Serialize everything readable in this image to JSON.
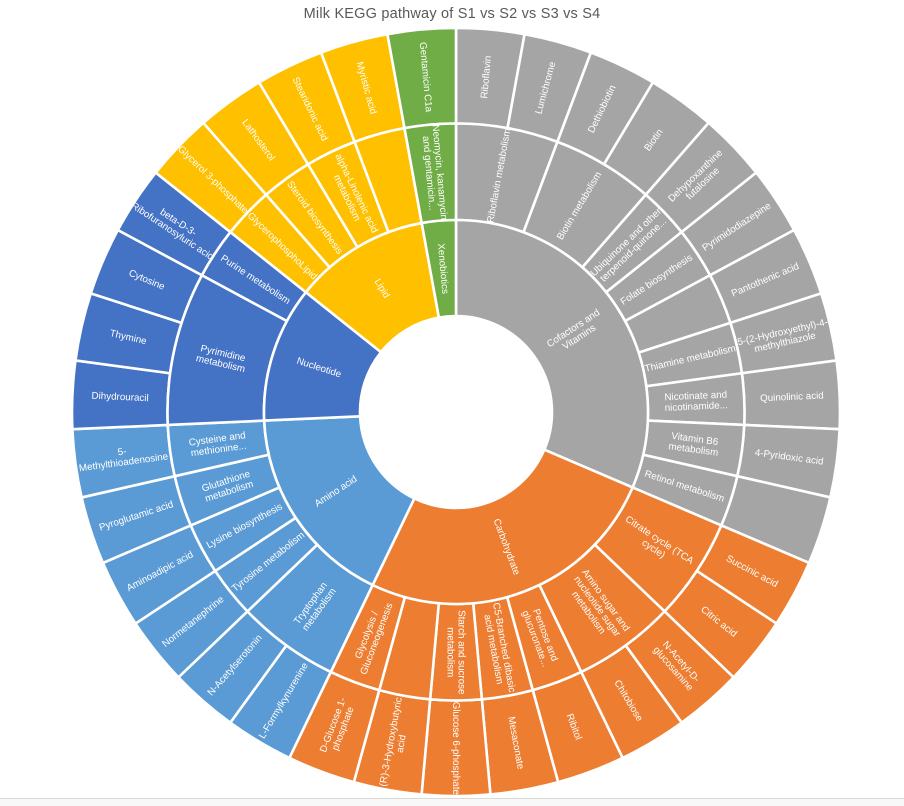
{
  "chart_data": {
    "type": "sunburst",
    "title": "Milk KEGG pathway of S1 vs S2 vs S3 vs S4",
    "rings": [
      "category",
      "pathway",
      "compound"
    ],
    "start_angle_deg": 0,
    "direction": "clockwise",
    "equal_leaf_angles": true,
    "legend": "none",
    "label_color": "#ffffff",
    "title_color": "#595959",
    "categories": [
      {
        "label": "Cofactors and\nVitamins",
        "color": "#A5A5A5",
        "pathways": [
          {
            "label": "Riboflavin metabolism",
            "compounds": [
              "Riboflavin",
              "Lumichrome"
            ]
          },
          {
            "label": "Biotin metabolism",
            "compounds": [
              "Dethiobiotin",
              "Biotin"
            ]
          },
          {
            "label": "Ubiquinone and other\nterpenoid-quinone...",
            "compounds": [
              "Dehypoxanthine\nfutalosine"
            ]
          },
          {
            "label": "Folate biosynthesis",
            "compounds": [
              "Pyrimidodiazepine"
            ]
          },
          {
            "label": "",
            "compounds": [
              "Pantothenic acid"
            ]
          },
          {
            "label": "Thiamine metabolism",
            "compounds": [
              "5-(2-Hydroxyethyl)-4-\nmethylthiazole"
            ]
          },
          {
            "label": "Nicotinate and\nnicotinamide...",
            "compounds": [
              "Quinolinic acid"
            ]
          },
          {
            "label": "Vitamin B6\nmetabolism",
            "compounds": [
              "4-Pyridoxic acid"
            ]
          },
          {
            "label": "Retinol metabolism",
            "compounds": [
              ""
            ]
          }
        ]
      },
      {
        "label": "Carbohydrate",
        "color": "#ED7D31",
        "pathways": [
          {
            "label": "Citrate cycle (TCA\ncycle)",
            "compounds": [
              "Succinic acid",
              "Citric acid"
            ]
          },
          {
            "label": "Amino sugar and\nnucleotide sugar\nmetabolism",
            "compounds": [
              "N-Acetyl-D-\nglucosamine",
              "Chitobiose"
            ]
          },
          {
            "label": "Pentose and\nglucuronate...",
            "compounds": [
              "Ribitol"
            ]
          },
          {
            "label": "C5-Branched dibasic\nacid metabolism",
            "compounds": [
              "Mesaconate"
            ]
          },
          {
            "label": "Starch and sucrose\nmetabolism",
            "compounds": [
              "Glucose 6-phosphate"
            ]
          },
          {
            "label": "",
            "compounds": [
              "(R)-3-Hydroxybutyric\nacid"
            ]
          },
          {
            "label": "Glycolysis /\nGluconeogenesis",
            "compounds": [
              "D-Glucose 1-\nphosphate"
            ]
          }
        ]
      },
      {
        "label": "Amino acid",
        "color": "#5B9BD5",
        "pathways": [
          {
            "label": "Tryptophan\nmetabolism",
            "compounds": [
              "L-Formylkynurenine",
              "N-Acetylserotonin"
            ]
          },
          {
            "label": "Tyrosine metabolism",
            "compounds": [
              "Normetanephrine"
            ]
          },
          {
            "label": "Lysine biosynthesis",
            "compounds": [
              "Aminoadipic acid"
            ]
          },
          {
            "label": "Glutathione\nmetabolism",
            "compounds": [
              "Pyroglutamic acid"
            ]
          },
          {
            "label": "Cysteine and\nmethionine...",
            "compounds": [
              "5-\nMethylthioadenosine"
            ]
          }
        ]
      },
      {
        "label": "Nucleotide",
        "color": "#4472C4",
        "pathways": [
          {
            "label": "Pyrimidine\nmetabolism",
            "compounds": [
              "Dihydrouracil",
              "Thymine",
              "Cytosine"
            ]
          },
          {
            "label": "Purine metabolism",
            "compounds": [
              "beta-D-3-\nRibofuranosyluric acid"
            ]
          }
        ]
      },
      {
        "label": "Lipid",
        "color": "#FFC000",
        "pathways": [
          {
            "label": "GlycerophosphoLipid",
            "compounds": [
              "Glycerol 3-phosphate"
            ]
          },
          {
            "label": "Steroid biosynthesis",
            "compounds": [
              "Lathosterol"
            ]
          },
          {
            "label": "alpha-Linolenic acid\nmetabolism",
            "compounds": [
              "Stearidonic acid"
            ]
          },
          {
            "label": "",
            "compounds": [
              "Myristic acid"
            ]
          }
        ]
      },
      {
        "label": "Xenobiotics",
        "color": "#70AD47",
        "pathways": [
          {
            "label": "Neomycin, kanamycin\nand gentamicin...",
            "compounds": [
              "Gentamicin C1a"
            ]
          }
        ]
      }
    ]
  }
}
